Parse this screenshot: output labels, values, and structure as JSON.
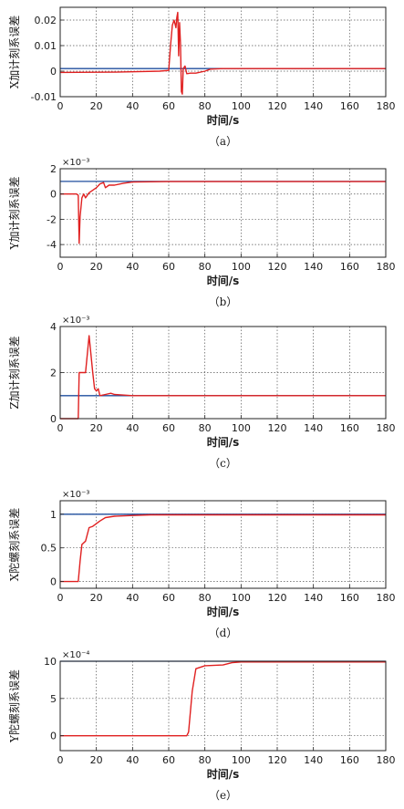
{
  "chart_data": [
    {
      "type": "line",
      "caption": "（a）",
      "xlabel": "时间/s",
      "ylabel": "X加计刻系误差",
      "exponent": "",
      "xlim": [
        0,
        180
      ],
      "ylim": [
        -0.01,
        0.025
      ],
      "xticks": [
        0,
        20,
        40,
        60,
        80,
        100,
        120,
        140,
        160,
        180
      ],
      "yticks": [
        -0.01,
        0,
        0.01,
        0.02
      ],
      "ytick_labels": [
        "-0.01",
        "0",
        "0.01",
        "0.02"
      ],
      "grid": true,
      "series": [
        {
          "color": "#1f4e9e",
          "points": [
            [
              0,
              0.001
            ],
            [
              180,
              0.001
            ]
          ]
        },
        {
          "color": "#e02020",
          "points": [
            [
              0,
              -0.0005
            ],
            [
              30,
              -0.0004
            ],
            [
              55,
              0.0
            ],
            [
              60,
              0.0003
            ],
            [
              61,
              0.01
            ],
            [
              62,
              0.018
            ],
            [
              63,
              0.02
            ],
            [
              64,
              0.017
            ],
            [
              64.5,
              0.021
            ],
            [
              65,
              0.023
            ],
            [
              65.5,
              0.006
            ],
            [
              66,
              0.019
            ],
            [
              66.5,
              0.011
            ],
            [
              67,
              -0.008
            ],
            [
              67.5,
              -0.009
            ],
            [
              68,
              0.001
            ],
            [
              69,
              0.002
            ],
            [
              70,
              -0.001
            ],
            [
              72,
              -0.0008
            ],
            [
              75,
              -0.0008
            ],
            [
              80,
              0.0
            ],
            [
              83,
              0.0008
            ],
            [
              90,
              0.001
            ],
            [
              180,
              0.001
            ]
          ]
        }
      ]
    },
    {
      "type": "line",
      "caption": "（b）",
      "xlabel": "时间/s",
      "ylabel": "Y加计刻系误差",
      "exponent": "×10⁻³",
      "xlim": [
        0,
        180
      ],
      "ylim": [
        -5,
        2
      ],
      "xticks": [
        0,
        20,
        40,
        60,
        80,
        100,
        120,
        140,
        160,
        180
      ],
      "yticks": [
        -4,
        -2,
        0,
        2
      ],
      "ytick_labels": [
        "-4",
        "-2",
        "0",
        "2"
      ],
      "grid": true,
      "series": [
        {
          "color": "#1f4e9e",
          "points": [
            [
              0,
              1
            ],
            [
              180,
              1
            ]
          ]
        },
        {
          "color": "#e02020",
          "points": [
            [
              0,
              0
            ],
            [
              9,
              0
            ],
            [
              10,
              -0.1
            ],
            [
              10.5,
              -3.9
            ],
            [
              11,
              -1.8
            ],
            [
              12,
              -0.3
            ],
            [
              13,
              0
            ],
            [
              14,
              -0.3
            ],
            [
              16,
              0.1
            ],
            [
              20,
              0.5
            ],
            [
              22,
              0.8
            ],
            [
              24,
              0.9
            ],
            [
              25,
              0.5
            ],
            [
              27,
              0.7
            ],
            [
              30,
              0.7
            ],
            [
              35,
              0.85
            ],
            [
              40,
              0.95
            ],
            [
              60,
              0.98
            ],
            [
              180,
              0.98
            ]
          ]
        }
      ]
    },
    {
      "type": "line",
      "caption": "（c）",
      "xlabel": "时间/s",
      "ylabel": "Z加计刻系误差",
      "exponent": "×10⁻³",
      "xlim": [
        0,
        180
      ],
      "ylim": [
        0,
        4
      ],
      "xticks": [
        0,
        20,
        40,
        60,
        80,
        100,
        120,
        140,
        160,
        180
      ],
      "yticks": [
        0,
        2,
        4
      ],
      "ytick_labels": [
        "0",
        "2",
        "4"
      ],
      "grid": true,
      "series": [
        {
          "color": "#1f4e9e",
          "points": [
            [
              0,
              1
            ],
            [
              180,
              1
            ]
          ]
        },
        {
          "color": "#e02020",
          "points": [
            [
              0,
              0
            ],
            [
              10,
              0
            ],
            [
              10.5,
              2
            ],
            [
              14,
              2
            ],
            [
              16,
              3.6
            ],
            [
              18,
              2
            ],
            [
              19,
              1.3
            ],
            [
              20,
              1.2
            ],
            [
              21,
              1.3
            ],
            [
              22,
              1.0
            ],
            [
              25,
              1.05
            ],
            [
              28,
              1.1
            ],
            [
              30,
              1.05
            ],
            [
              40,
              1.0
            ],
            [
              180,
              1.0
            ]
          ]
        }
      ]
    },
    {
      "type": "line",
      "caption": "（d）",
      "xlabel": "时间/s",
      "ylabel": "X陀螺刻系误差",
      "exponent": "×10⁻³",
      "xlim": [
        0,
        180
      ],
      "ylim": [
        -0.1,
        1.2
      ],
      "xticks": [
        0,
        20,
        40,
        60,
        80,
        100,
        120,
        140,
        160,
        180
      ],
      "yticks": [
        0,
        0.5,
        1
      ],
      "ytick_labels": [
        "0",
        "0.5",
        "1"
      ],
      "grid": true,
      "series": [
        {
          "color": "#1f4e9e",
          "points": [
            [
              0,
              1
            ],
            [
              180,
              1
            ]
          ]
        },
        {
          "color": "#e02020",
          "points": [
            [
              0,
              0
            ],
            [
              10,
              0
            ],
            [
              11,
              0.3
            ],
            [
              12,
              0.55
            ],
            [
              14,
              0.6
            ],
            [
              16,
              0.8
            ],
            [
              18,
              0.82
            ],
            [
              20,
              0.86
            ],
            [
              22,
              0.9
            ],
            [
              25,
              0.95
            ],
            [
              30,
              0.97
            ],
            [
              40,
              0.98
            ],
            [
              50,
              0.99
            ],
            [
              180,
              0.99
            ]
          ]
        }
      ]
    },
    {
      "type": "line",
      "caption": "（e）",
      "xlabel": "时间/s",
      "ylabel": "Y陀螺刻系误差",
      "exponent": "×10⁻⁴",
      "xlim": [
        0,
        180
      ],
      "ylim": [
        -2,
        10
      ],
      "xticks": [
        0,
        20,
        40,
        60,
        80,
        100,
        120,
        140,
        160,
        180
      ],
      "yticks": [
        0,
        5,
        10
      ],
      "ytick_labels": [
        "0",
        "5",
        "10"
      ],
      "grid": true,
      "series": [
        {
          "color": "#1f4e9e",
          "points": [
            [
              0,
              10
            ],
            [
              180,
              10
            ]
          ]
        },
        {
          "color": "#e02020",
          "points": [
            [
              0,
              0
            ],
            [
              50,
              0
            ],
            [
              70,
              0
            ],
            [
              71,
              0.5
            ],
            [
              73,
              6
            ],
            [
              75,
              9
            ],
            [
              80,
              9.4
            ],
            [
              90,
              9.5
            ],
            [
              95,
              9.8
            ],
            [
              100,
              9.9
            ],
            [
              180,
              9.9
            ]
          ]
        }
      ]
    }
  ]
}
